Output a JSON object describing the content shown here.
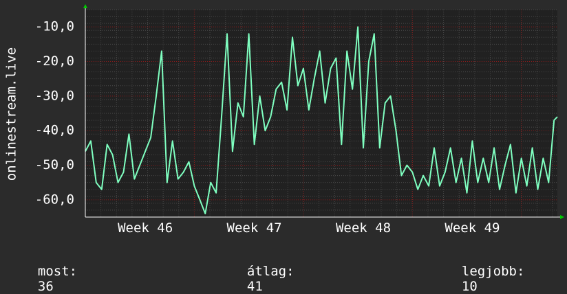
{
  "chart_data": {
    "type": "line",
    "ylabel": "onlinestream.live",
    "ylim": [
      -65,
      -5
    ],
    "yticks": [
      -10,
      -20,
      -30,
      -40,
      -50,
      -60
    ],
    "ytick_labels": [
      "-10,0",
      "-20,0",
      "-30,0",
      "-40,0",
      "-50,0",
      "-60,0"
    ],
    "xtick_labels": [
      "Week 46",
      "Week 47",
      "Week 48",
      "Week 49"
    ],
    "xlim": [
      0,
      4.33
    ],
    "xticks": [
      0.55,
      1.55,
      2.55,
      3.55
    ],
    "grid": true,
    "series": [
      {
        "color": "#7fffc0",
        "x": [
          0.0,
          0.05,
          0.1,
          0.15,
          0.2,
          0.25,
          0.3,
          0.35,
          0.4,
          0.45,
          0.5,
          0.55,
          0.6,
          0.65,
          0.7,
          0.75,
          0.8,
          0.85,
          0.9,
          0.95,
          1.0,
          1.05,
          1.1,
          1.15,
          1.2,
          1.25,
          1.3,
          1.35,
          1.4,
          1.45,
          1.5,
          1.55,
          1.6,
          1.65,
          1.7,
          1.75,
          1.8,
          1.85,
          1.9,
          1.95,
          2.0,
          2.05,
          2.1,
          2.15,
          2.2,
          2.25,
          2.3,
          2.35,
          2.4,
          2.45,
          2.5,
          2.55,
          2.6,
          2.65,
          2.7,
          2.75,
          2.8,
          2.85,
          2.9,
          2.95,
          3.0,
          3.05,
          3.1,
          3.15,
          3.2,
          3.25,
          3.3,
          3.35,
          3.4,
          3.45,
          3.5,
          3.55,
          3.6,
          3.65,
          3.7,
          3.75,
          3.8,
          3.85,
          3.9,
          3.95,
          4.0,
          4.05,
          4.1,
          4.15,
          4.2,
          4.25,
          4.3,
          4.33
        ],
        "y": [
          -46,
          -43,
          -55,
          -57,
          -44,
          -47,
          -55,
          -52,
          -41,
          -54,
          -50,
          -46,
          -42,
          -30,
          -17,
          -55,
          -43,
          -54,
          -52,
          -49,
          -56,
          -60,
          -64,
          -55,
          -58,
          -36,
          -12,
          -46,
          -32,
          -36,
          -12,
          -44,
          -30,
          -40,
          -36,
          -28,
          -26,
          -34,
          -13,
          -27,
          -22,
          -34,
          -25,
          -17,
          -32,
          -22,
          -19,
          -44,
          -17,
          -28,
          -10,
          -45,
          -20,
          -12,
          -45,
          -32,
          -30,
          -40,
          -53,
          -50,
          -52,
          -57,
          -53,
          -56,
          -45,
          -56,
          -52,
          -45,
          -55,
          -48,
          -58,
          -43,
          -55,
          -48,
          -55,
          -45,
          -57,
          -50,
          -44,
          -58,
          -48,
          -56,
          -45,
          -57,
          -48,
          -55,
          -37,
          -36
        ]
      }
    ]
  },
  "stats": {
    "current_label": "most:",
    "current_value": "36",
    "average_label": "átlag:",
    "average_value": "41",
    "best_label": "legjobb:",
    "best_value": "10"
  },
  "colors": {
    "background": "#2b2b2b",
    "plot_background": "#212121",
    "line": "#7fffc0",
    "major_grid": "#8b1a1a",
    "minor_grid": "#4a4a4a",
    "axis": "#ffffff",
    "arrow": "#00cc00"
  }
}
